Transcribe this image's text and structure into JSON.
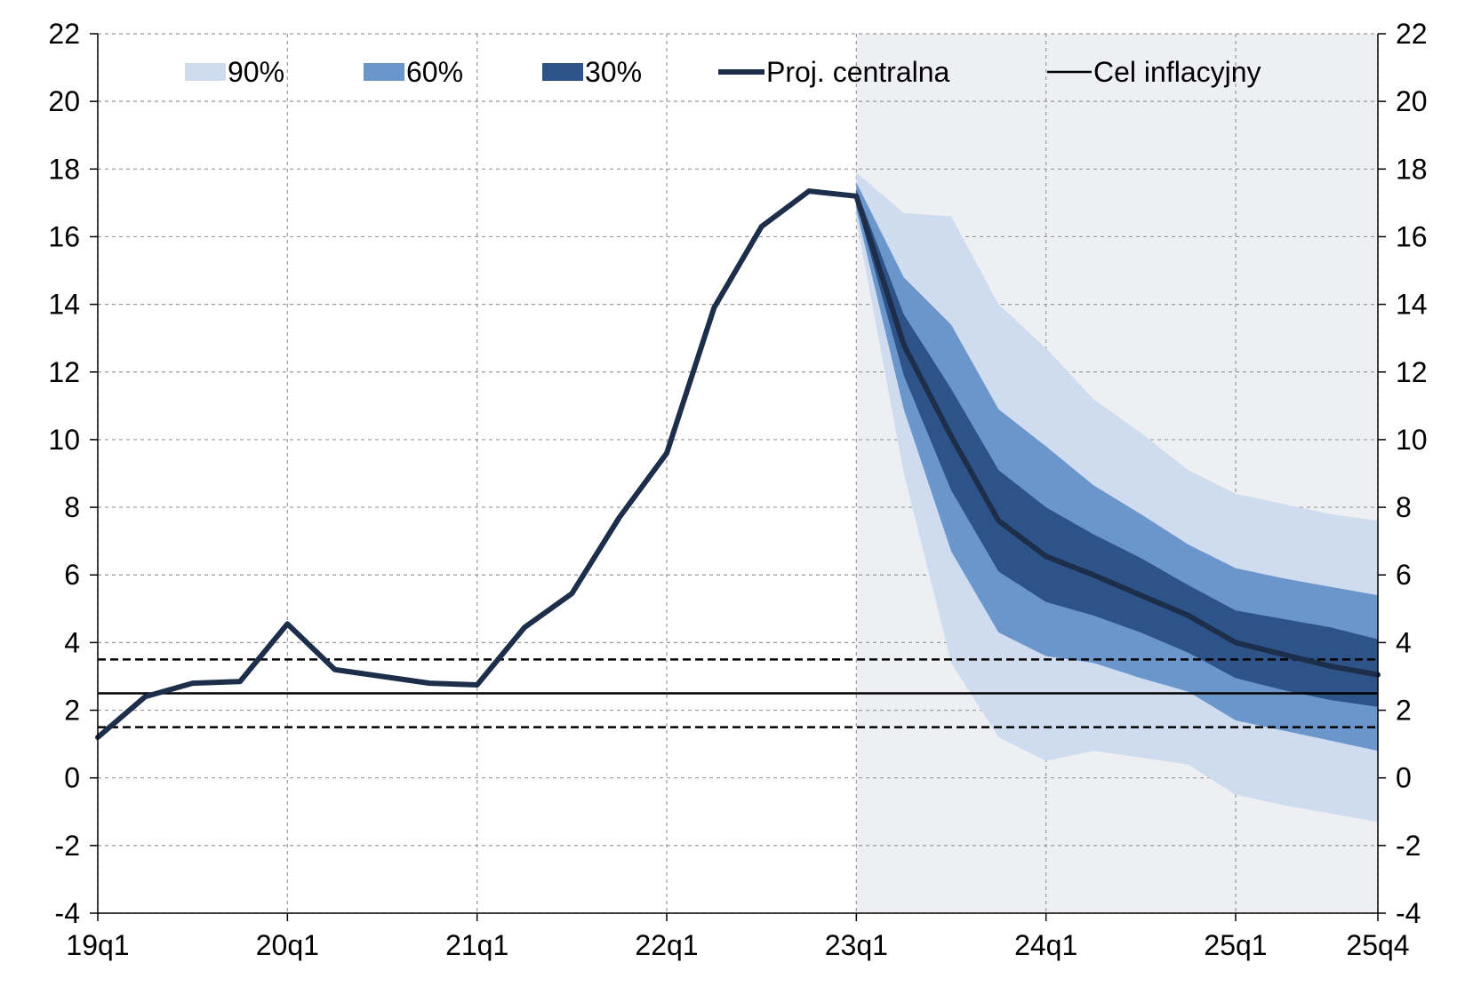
{
  "chart_data": {
    "type": "fan-line",
    "title": "",
    "xlabel": "",
    "ylabel": "",
    "ylim": [
      -4,
      22
    ],
    "yticks": [
      -4,
      -2,
      0,
      2,
      4,
      6,
      8,
      10,
      12,
      14,
      16,
      18,
      20,
      22
    ],
    "ytick_labels": [
      "-4",
      "-2",
      "0",
      "2",
      "4",
      "6",
      "8",
      "10",
      "12",
      "14",
      "16",
      "18",
      "20",
      "22"
    ],
    "x_categories": [
      "19q1",
      "19q2",
      "19q3",
      "19q4",
      "20q1",
      "20q2",
      "20q3",
      "20q4",
      "21q1",
      "21q2",
      "21q3",
      "21q4",
      "22q1",
      "22q2",
      "22q3",
      "22q4",
      "23q1",
      "23q2",
      "23q3",
      "23q4",
      "24q1",
      "24q2",
      "24q3",
      "24q4",
      "25q1",
      "25q2",
      "25q3",
      "25q4"
    ],
    "xtick_labels": [
      {
        "index": 0,
        "label": "19q1"
      },
      {
        "index": 4,
        "label": "20q1"
      },
      {
        "index": 8,
        "label": "21q1"
      },
      {
        "index": 12,
        "label": "22q1"
      },
      {
        "index": 16,
        "label": "23q1"
      },
      {
        "index": 20,
        "label": "24q1"
      },
      {
        "index": 24,
        "label": "25q1"
      },
      {
        "index": 27,
        "label": "25q4"
      }
    ],
    "projection_start_index": 16,
    "series": [
      {
        "name": "Proj. centralna",
        "color": "#1d2e4a",
        "values": [
          1.2,
          2.4,
          2.8,
          2.85,
          4.55,
          3.2,
          3.0,
          2.8,
          2.75,
          4.45,
          5.45,
          7.7,
          9.6,
          13.9,
          16.3,
          17.35,
          17.2,
          12.8,
          10.1,
          7.6,
          6.55,
          6.0,
          5.4,
          4.8,
          4.0,
          3.65,
          3.3,
          3.05
        ]
      }
    ],
    "fan_bands": [
      {
        "name": "90%",
        "color": "#cfdcef",
        "start_index": 16,
        "lower": [
          16.5,
          9.0,
          3.4,
          1.2,
          0.5,
          0.8,
          0.6,
          0.4,
          -0.5,
          -0.8,
          -1.05,
          -1.3
        ],
        "upper": [
          17.9,
          16.7,
          16.6,
          14.0,
          12.7,
          11.2,
          10.2,
          9.1,
          8.4,
          8.1,
          7.8,
          7.6
        ]
      },
      {
        "name": "60%",
        "color": "#6b96cc",
        "start_index": 16,
        "lower": [
          16.8,
          10.9,
          6.7,
          4.3,
          3.6,
          3.4,
          2.95,
          2.55,
          1.7,
          1.4,
          1.1,
          0.8
        ],
        "upper": [
          17.6,
          14.8,
          13.4,
          10.9,
          9.8,
          8.65,
          7.8,
          6.9,
          6.2,
          5.9,
          5.65,
          5.4
        ]
      },
      {
        "name": "30%",
        "color": "#2e5388",
        "start_index": 16,
        "lower": [
          17.0,
          11.9,
          8.5,
          6.1,
          5.2,
          4.8,
          4.3,
          3.7,
          2.95,
          2.6,
          2.3,
          2.1
        ],
        "upper": [
          17.4,
          13.7,
          11.5,
          9.1,
          8.0,
          7.2,
          6.5,
          5.7,
          4.95,
          4.7,
          4.45,
          4.1
        ]
      }
    ],
    "reference_lines": [
      {
        "name": "Cel inflacyjny",
        "value": 2.5,
        "style": "solid",
        "color": "#000000"
      },
      {
        "name": "upper tolerance",
        "value": 3.5,
        "style": "dashed",
        "color": "#000000"
      },
      {
        "name": "lower tolerance",
        "value": 1.5,
        "style": "dashed",
        "color": "#000000"
      }
    ],
    "legend": [
      {
        "label": "90%",
        "kind": "patch",
        "color": "#cfdcef"
      },
      {
        "label": "60%",
        "kind": "patch",
        "color": "#6b96cc"
      },
      {
        "label": "30%",
        "kind": "patch",
        "color": "#2e5388"
      },
      {
        "label": "Proj. centralna",
        "kind": "thick-line",
        "color": "#1d2e4a"
      },
      {
        "label": "Cel inflacyjny",
        "kind": "thin-line",
        "color": "#000000"
      }
    ],
    "legend_position": "top",
    "projection_shading_color": "#eeeff2",
    "grid": true,
    "dual_y_axis": true
  }
}
